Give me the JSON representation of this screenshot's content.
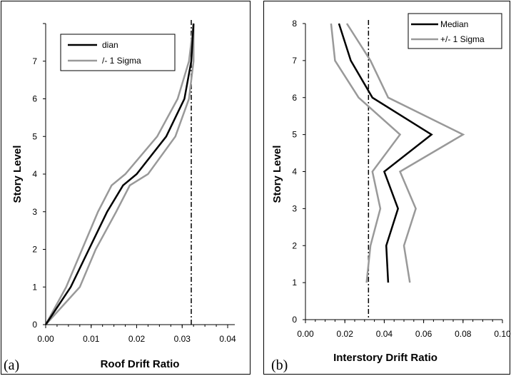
{
  "chart_data": [
    {
      "type": "line",
      "panel_label": "(a)",
      "xlabel": "Roof Drift Ratio",
      "ylabel": "Story Level",
      "xlim": [
        0,
        0.04
      ],
      "ylim": [
        0,
        8
      ],
      "x_ticks": [
        "0.00",
        "0.01",
        "0.02",
        "0.03",
        "0.04"
      ],
      "y_ticks": [
        "0",
        "1",
        "2",
        "3",
        "4",
        "5",
        "6",
        "7"
      ],
      "legend": {
        "placement": "top-left",
        "entries": [
          {
            "label": "dian",
            "color": "#000000"
          },
          {
            "label": "/- 1 Sigma",
            "color": "#999999"
          }
        ]
      },
      "series": [
        {
          "name": "dian",
          "color": "#000000",
          "points": [
            [
              0,
              0
            ],
            [
              0.0055,
              1
            ],
            [
              0.0095,
              2
            ],
            [
              0.0135,
              3
            ],
            [
              0.017,
              3.7
            ],
            [
              0.02,
              4
            ],
            [
              0.0265,
              5
            ],
            [
              0.0305,
              6
            ],
            [
              0.032,
              7
            ],
            [
              0.0325,
              8
            ]
          ]
        },
        {
          "name": "/- 1 Sigma",
          "color": "#999999",
          "points": [
            [
              0,
              0
            ],
            [
              0.0045,
              1
            ],
            [
              0.008,
              2
            ],
            [
              0.0115,
              3
            ],
            [
              0.0145,
              3.7
            ],
            [
              0.0175,
              4
            ],
            [
              0.0245,
              5
            ],
            [
              0.029,
              6
            ],
            [
              0.0315,
              7
            ],
            [
              0.0325,
              8
            ]
          ]
        },
        {
          "color": "#999999",
          "points": [
            [
              0,
              0
            ],
            [
              0.0075,
              1
            ],
            [
              0.011,
              2
            ],
            [
              0.0155,
              3
            ],
            [
              0.0185,
              3.7
            ],
            [
              0.0225,
              4
            ],
            [
              0.0285,
              5
            ],
            [
              0.0315,
              6
            ],
            [
              0.0325,
              7
            ],
            [
              0.0325,
              8
            ]
          ]
        }
      ],
      "reference_line": {
        "x": 0.032,
        "style": "dash-dot"
      }
    },
    {
      "type": "line",
      "panel_label": "(b)",
      "xlabel": "Interstory Drift Ratio",
      "ylabel": "Story Level",
      "xlim": [
        0,
        0.1
      ],
      "ylim": [
        0,
        8
      ],
      "x_ticks": [
        "0.00",
        "0.02",
        "0.04",
        "0.06",
        "0.08",
        "0.10"
      ],
      "y_ticks": [
        "0",
        "1",
        "2",
        "3",
        "4",
        "5",
        "6",
        "7",
        "8"
      ],
      "legend": {
        "placement": "top-right",
        "entries": [
          {
            "label": "Median",
            "color": "#000000"
          },
          {
            "label": "+/- 1 Sigma",
            "color": "#999999"
          }
        ]
      },
      "series": [
        {
          "name": "Median",
          "color": "#000000",
          "points": [
            [
              0.042,
              1
            ],
            [
              0.041,
              2
            ],
            [
              0.047,
              3
            ],
            [
              0.04,
              4
            ],
            [
              0.064,
              5
            ],
            [
              0.034,
              6
            ],
            [
              0.023,
              7
            ],
            [
              0.017,
              8
            ]
          ]
        },
        {
          "name": "+/- 1 Sigma",
          "color": "#999999",
          "points": [
            [
              0.031,
              1
            ],
            [
              0.033,
              2
            ],
            [
              0.038,
              3
            ],
            [
              0.034,
              4
            ],
            [
              0.048,
              5
            ],
            [
              0.027,
              6
            ],
            [
              0.015,
              7
            ],
            [
              0.013,
              8
            ]
          ]
        },
        {
          "color": "#999999",
          "points": [
            [
              0.053,
              1
            ],
            [
              0.05,
              2
            ],
            [
              0.056,
              3
            ],
            [
              0.048,
              4
            ],
            [
              0.08,
              5
            ],
            [
              0.042,
              6
            ],
            [
              0.033,
              7
            ],
            [
              0.021,
              8
            ]
          ]
        }
      ],
      "reference_line": {
        "x": 0.032,
        "style": "dash-dot"
      }
    }
  ]
}
